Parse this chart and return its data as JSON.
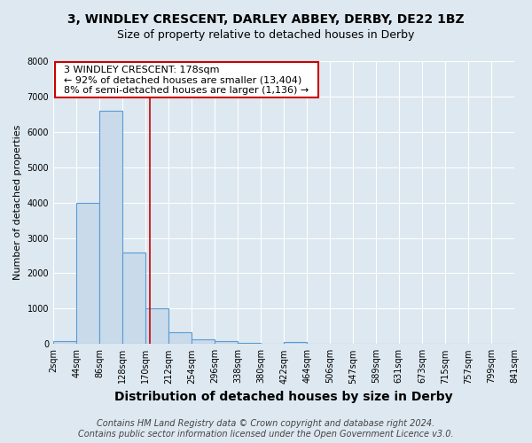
{
  "title": "3, WINDLEY CRESCENT, DARLEY ABBEY, DERBY, DE22 1BZ",
  "subtitle": "Size of property relative to detached houses in Derby",
  "xlabel": "Distribution of detached houses by size in Derby",
  "ylabel": "Number of detached properties",
  "bins": [
    2,
    44,
    86,
    128,
    170,
    212,
    254,
    296,
    338,
    380,
    422,
    464,
    506,
    547,
    589,
    631,
    673,
    715,
    757,
    799,
    841
  ],
  "counts": [
    75,
    4000,
    6600,
    2600,
    1000,
    330,
    130,
    80,
    40,
    20,
    65,
    0,
    0,
    0,
    0,
    0,
    0,
    0,
    0,
    0
  ],
  "bar_color": "#c9daea",
  "bar_edgecolor": "#5b9bd5",
  "property_size": 178,
  "annotation_title": "3 WINDLEY CRESCENT: 178sqm",
  "annotation_line1": "← 92% of detached houses are smaller (13,404)",
  "annotation_line2": "8% of semi-detached houses are larger (1,136) →",
  "redline_color": "#cc0000",
  "annotation_box_facecolor": "#ffffff",
  "annotation_box_edgecolor": "#cc0000",
  "ylim": [
    0,
    8000
  ],
  "yticks": [
    0,
    1000,
    2000,
    3000,
    4000,
    5000,
    6000,
    7000,
    8000
  ],
  "footer1": "Contains HM Land Registry data © Crown copyright and database right 2024.",
  "footer2": "Contains public sector information licensed under the Open Government Licence v3.0.",
  "bg_color": "#dde8f0",
  "plot_bg_color": "#dde8f0",
  "grid_color": "#ffffff",
  "title_fontsize": 10,
  "subtitle_fontsize": 9,
  "xlabel_fontsize": 10,
  "ylabel_fontsize": 8,
  "tick_fontsize": 7,
  "annotation_fontsize": 8,
  "footer_fontsize": 7
}
